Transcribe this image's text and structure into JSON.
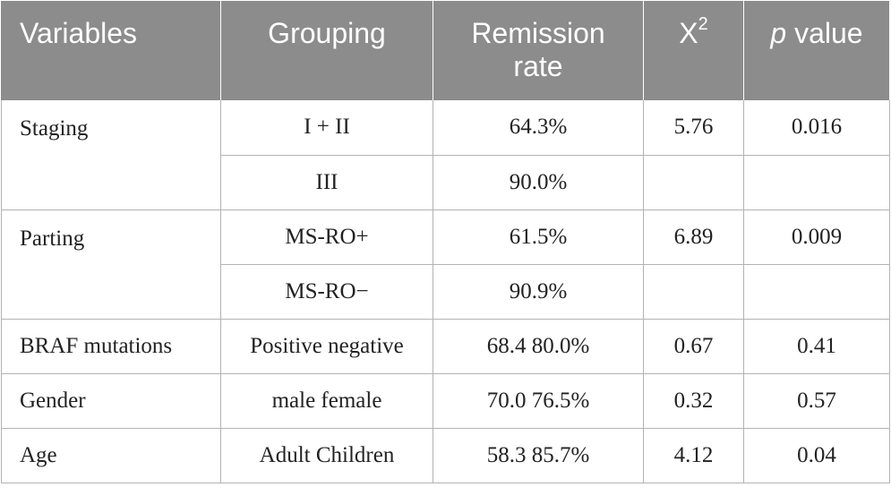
{
  "table": {
    "headers": {
      "variables": "Variables",
      "grouping": "Grouping",
      "remission_rate": "Remission rate",
      "chi_base": "X",
      "chi_sup": "2",
      "p_italic": "p",
      "p_rest": " value"
    },
    "rows": [
      {
        "variable": "Staging",
        "groups": [
          "I + II",
          "III"
        ],
        "rates": [
          "64.3%",
          "90.0%"
        ],
        "chi2": "5.76",
        "p": "0.016"
      },
      {
        "variable": "Parting",
        "groups": [
          "MS-RO+",
          "MS-RO−"
        ],
        "rates": [
          "61.5%",
          "90.9%"
        ],
        "chi2": "6.89",
        "p": "0.009"
      },
      {
        "variable": "BRAF mutations",
        "group": "Positive negative",
        "rate": "68.4 80.0%",
        "chi2": "0.67",
        "p": "0.41"
      },
      {
        "variable": "Gender",
        "group": "male female",
        "rate": "70.0 76.5%",
        "chi2": "0.32",
        "p": "0.57"
      },
      {
        "variable": "Age",
        "group": "Adult Children",
        "rate": "58.3 85.7%",
        "chi2": "4.12",
        "p": "0.04"
      }
    ]
  }
}
